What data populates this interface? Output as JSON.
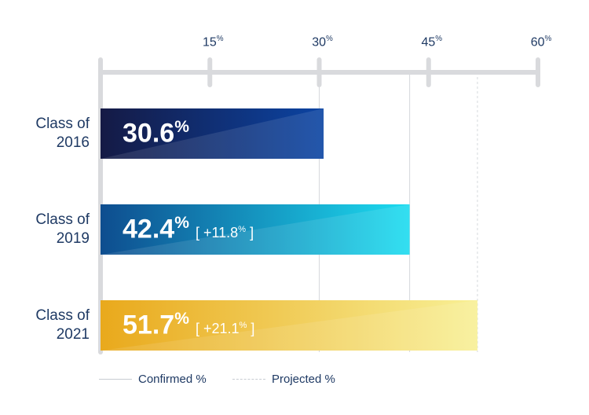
{
  "chart_data": {
    "type": "bar",
    "orientation": "horizontal",
    "categories": [
      {
        "line1": "Class of",
        "line2": "2016"
      },
      {
        "line1": "Class of",
        "line2": "2019"
      },
      {
        "line1": "Class of",
        "line2": "2021"
      }
    ],
    "values": [
      30.6,
      42.4,
      51.7
    ],
    "value_labels": [
      "30.6",
      "42.4",
      "51.7"
    ],
    "deltas": [
      "",
      "[ +11.8",
      "[ +21.1"
    ],
    "delta_suffix": "]",
    "percent_sign": "%",
    "status": [
      "Confirmed",
      "Confirmed",
      "Projected"
    ],
    "xlim": [
      0,
      60
    ],
    "xticks": [
      15,
      30,
      45,
      60
    ],
    "tick_labels": [
      "15",
      "30",
      "45",
      "60"
    ],
    "reference_lines": [
      {
        "value": 30,
        "style": "solid"
      },
      {
        "value": 42.4,
        "style": "solid"
      },
      {
        "value": 51.7,
        "style": "dashed"
      }
    ],
    "colors": {
      "bar_2016": [
        "#151a45",
        "#0b44a3"
      ],
      "bar_2019": [
        "#0e4d8f",
        "#1cdcf0"
      ],
      "bar_2021": [
        "#e9a91c",
        "#f8f096"
      ],
      "axis": "#d9dadd",
      "text": "#1f3a64"
    },
    "legend": {
      "position": "bottom",
      "items": [
        {
          "label": "Confirmed %",
          "style": "solid"
        },
        {
          "label": "Projected %",
          "style": "dashed"
        }
      ]
    }
  }
}
